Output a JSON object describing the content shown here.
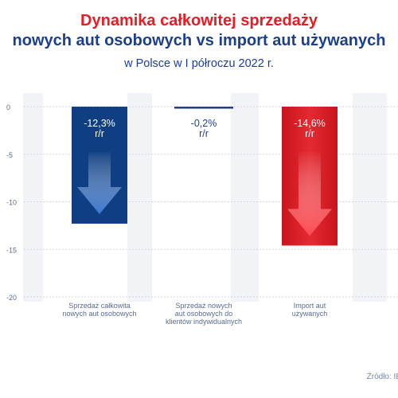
{
  "title": {
    "line1": "Dynamika całkowitej sprzedaży",
    "line2": "nowych aut osobowych vs import aut używanych",
    "subtitle": "w Polsce w I półroczu 2022 r."
  },
  "source": "Źródło: IE",
  "colors": {
    "new_cars": "#0f3f82",
    "private_clients": "#1e3f8a",
    "imports": "#e2232a",
    "axis_text": "#5a6b8f",
    "grid": "#cfd5e1",
    "column_bg": "#f1f3f7"
  },
  "chart_data": {
    "type": "bar",
    "title": "Dynamika całkowitej sprzedaży nowych aut osobowych vs import aut używanych",
    "subtitle": "w Polsce w I półroczu 2022 r.",
    "categories": [
      "Sprzedaż całkowita nowych aut osobowych",
      "Sprzedaż nowych aut osobowych do klientów indywidualnych",
      "Import aut używanych"
    ],
    "category_label_lines": [
      [
        "Sprzedaż całkowita",
        "nowych aut osobowych"
      ],
      [
        "Sprzedaż nowych",
        "aut osobowych do",
        "klientów indywidualnych"
      ],
      [
        "Import aut",
        "używanych"
      ]
    ],
    "values": [
      -12.3,
      -0.2,
      -14.6
    ],
    "data_labels": [
      [
        "-12,3%",
        "r/r"
      ],
      [
        "-0,2%",
        "r/r"
      ],
      [
        "-14,6%",
        "r/r"
      ]
    ],
    "ylim": [
      -20,
      0
    ],
    "yticks": [
      0,
      -5,
      -10,
      -15,
      -20
    ],
    "ytick_labels": [
      "0",
      "-5",
      "-10",
      "-15",
      "-20"
    ],
    "grid": true,
    "arrow_icons": [
      "down-arrow-icon",
      null,
      "down-arrow-icon"
    ]
  }
}
